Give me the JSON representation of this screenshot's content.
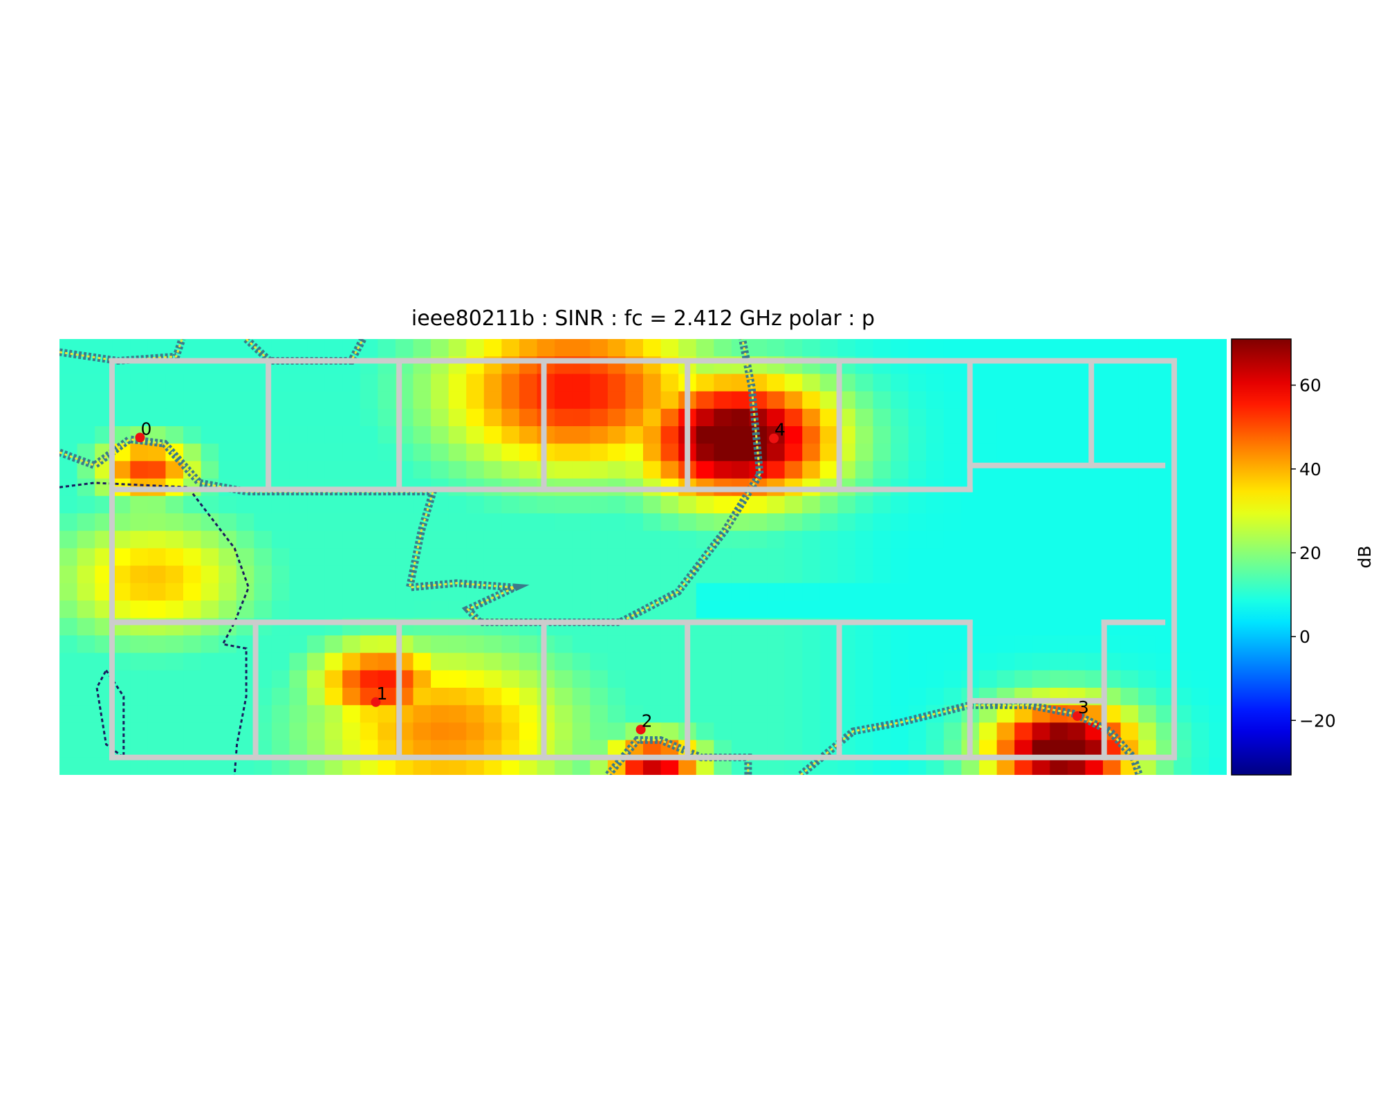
{
  "chart_data": {
    "type": "heatmap",
    "title": "ieee80211b : SINR :  fc = 2.412 GHz polar : p",
    "colorbar": {
      "label": "dB",
      "range": [
        -33,
        71
      ],
      "ticks": [
        -20,
        0,
        20,
        40,
        60
      ],
      "tick_labels": [
        "−20",
        "0",
        "20",
        "40",
        "60"
      ],
      "colormap": "jet"
    },
    "grid": false,
    "access_points": [
      {
        "label": "0",
        "u": 0.069,
        "v": 0.226
      },
      {
        "label": "1",
        "u": 0.271,
        "v": 0.833
      },
      {
        "label": "2",
        "u": 0.498,
        "v": 0.896
      },
      {
        "label": "3",
        "u": 0.872,
        "v": 0.865
      },
      {
        "label": "4",
        "u": 0.612,
        "v": 0.228
      }
    ],
    "heat_sources": [
      {
        "u": 0.58,
        "v": 0.23,
        "db": 70,
        "s": 0.06
      },
      {
        "u": 0.44,
        "v": 0.12,
        "db": 48,
        "s": 0.08
      },
      {
        "u": 0.275,
        "v": 0.79,
        "db": 48,
        "s": 0.04
      },
      {
        "u": 0.33,
        "v": 0.9,
        "db": 36,
        "s": 0.08
      },
      {
        "u": 0.86,
        "v": 0.94,
        "db": 70,
        "s": 0.045
      },
      {
        "u": 0.51,
        "v": 0.98,
        "db": 55,
        "s": 0.03
      },
      {
        "u": 0.075,
        "v": 0.3,
        "db": 44,
        "s": 0.03
      },
      {
        "u": 0.08,
        "v": 0.55,
        "db": 30,
        "s": 0.06
      }
    ],
    "walls": [
      [
        [
          0.045,
          0.05
        ],
        [
          0.955,
          0.05
        ]
      ],
      [
        [
          0.045,
          0.05
        ],
        [
          0.045,
          0.96
        ]
      ],
      [
        [
          0.045,
          0.96
        ],
        [
          0.955,
          0.96
        ]
      ],
      [
        [
          0.955,
          0.05
        ],
        [
          0.955,
          0.96
        ]
      ],
      [
        [
          0.045,
          0.345
        ],
        [
          0.78,
          0.345
        ]
      ],
      [
        [
          0.045,
          0.65
        ],
        [
          0.78,
          0.65
        ]
      ],
      [
        [
          0.78,
          0.29
        ],
        [
          0.945,
          0.29
        ]
      ],
      [
        [
          0.179,
          0.05
        ],
        [
          0.179,
          0.345
        ]
      ],
      [
        [
          0.291,
          0.05
        ],
        [
          0.291,
          0.345
        ]
      ],
      [
        [
          0.415,
          0.05
        ],
        [
          0.415,
          0.345
        ]
      ],
      [
        [
          0.538,
          0.05
        ],
        [
          0.538,
          0.345
        ]
      ],
      [
        [
          0.668,
          0.05
        ],
        [
          0.668,
          0.345
        ]
      ],
      [
        [
          0.78,
          0.05
        ],
        [
          0.78,
          0.345
        ]
      ],
      [
        [
          0.884,
          0.05
        ],
        [
          0.884,
          0.29
        ]
      ],
      [
        [
          0.168,
          0.65
        ],
        [
          0.168,
          0.96
        ]
      ],
      [
        [
          0.291,
          0.65
        ],
        [
          0.291,
          0.96
        ]
      ],
      [
        [
          0.415,
          0.65
        ],
        [
          0.415,
          0.96
        ]
      ],
      [
        [
          0.538,
          0.65
        ],
        [
          0.538,
          0.96
        ]
      ],
      [
        [
          0.668,
          0.65
        ],
        [
          0.668,
          0.96
        ]
      ],
      [
        [
          0.78,
          0.65
        ],
        [
          0.78,
          0.96
        ]
      ],
      [
        [
          0.78,
          0.83
        ],
        [
          0.895,
          0.83
        ]
      ],
      [
        [
          0.895,
          0.65
        ],
        [
          0.895,
          0.96
        ]
      ],
      [
        [
          0.895,
          0.65
        ],
        [
          0.945,
          0.65
        ]
      ]
    ],
    "contours": [
      {
        "style": "teal-yellow",
        "points": [
          [
            0.0,
            0.03
          ],
          [
            0.05,
            0.05
          ],
          [
            0.1,
            0.04
          ],
          [
            0.105,
            0.0
          ]
        ]
      },
      {
        "style": "teal-yellow",
        "points": [
          [
            0.16,
            0.0
          ],
          [
            0.18,
            0.05
          ],
          [
            0.25,
            0.05
          ],
          [
            0.26,
            0.0
          ]
        ]
      },
      {
        "style": "teal-yellow",
        "points": [
          [
            0.0,
            0.26
          ],
          [
            0.03,
            0.29
          ],
          [
            0.06,
            0.23
          ],
          [
            0.09,
            0.24
          ],
          [
            0.12,
            0.33
          ],
          [
            0.16,
            0.35
          ],
          [
            0.32,
            0.35
          ],
          [
            0.31,
            0.44
          ],
          [
            0.3,
            0.57
          ],
          [
            0.34,
            0.56
          ],
          [
            0.39,
            0.57
          ],
          [
            0.35,
            0.62
          ],
          [
            0.36,
            0.65
          ],
          [
            0.48,
            0.65
          ],
          [
            0.53,
            0.58
          ],
          [
            0.57,
            0.44
          ],
          [
            0.6,
            0.31
          ],
          [
            0.593,
            0.11
          ],
          [
            0.585,
            0.0
          ]
        ]
      },
      {
        "style": "teal-yellow",
        "points": [
          [
            0.47,
            1.0
          ],
          [
            0.495,
            0.92
          ],
          [
            0.515,
            0.92
          ],
          [
            0.55,
            0.96
          ],
          [
            0.59,
            0.96
          ],
          [
            0.59,
            1.0
          ]
        ]
      },
      {
        "style": "teal-yellow",
        "points": [
          [
            0.635,
            1.0
          ],
          [
            0.68,
            0.9
          ],
          [
            0.72,
            0.88
          ],
          [
            0.78,
            0.84
          ],
          [
            0.83,
            0.84
          ],
          [
            0.87,
            0.86
          ],
          [
            0.9,
            0.9
          ],
          [
            0.92,
            0.96
          ],
          [
            0.925,
            1.0
          ]
        ]
      },
      {
        "style": "navy",
        "points": [
          [
            0.0,
            0.34
          ],
          [
            0.03,
            0.33
          ],
          [
            0.11,
            0.34
          ],
          [
            0.15,
            0.48
          ],
          [
            0.162,
            0.57
          ],
          [
            0.15,
            0.65
          ],
          [
            0.14,
            0.7
          ],
          [
            0.16,
            0.71
          ],
          [
            0.16,
            0.82
          ],
          [
            0.152,
            0.93
          ],
          [
            0.15,
            1.0
          ]
        ]
      },
      {
        "style": "navy",
        "points": [
          [
            0.04,
            0.76
          ],
          [
            0.055,
            0.82
          ],
          [
            0.055,
            0.96
          ],
          [
            0.04,
            0.93
          ],
          [
            0.032,
            0.8
          ],
          [
            0.04,
            0.76
          ]
        ]
      }
    ]
  }
}
